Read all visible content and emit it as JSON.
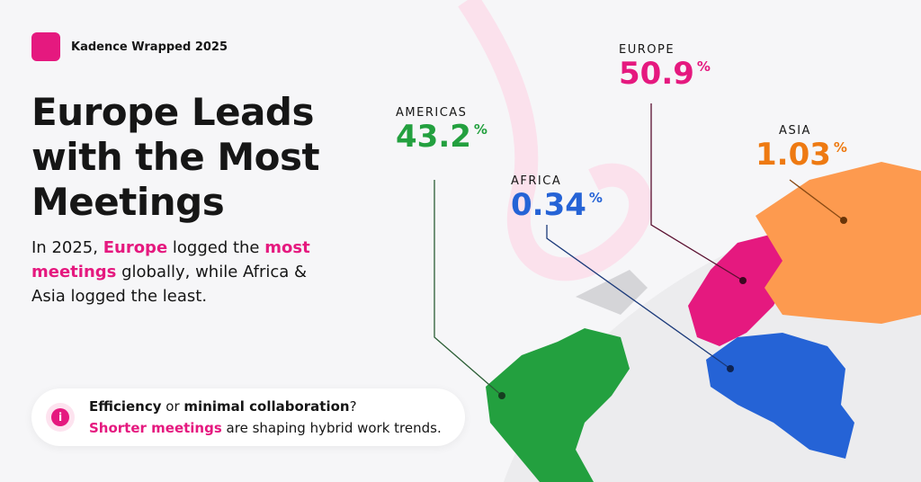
{
  "brand": "Kadence Wrapped 2025",
  "title": "Europe Leads with the Most Meetings",
  "description": [
    "In 2025, ",
    "Europe",
    " logged the ",
    "most meetings",
    " globally, while Africa & Asia logged the least."
  ],
  "regions": [
    {
      "name": "AMERICAS",
      "value": 43.2,
      "unit": "%"
    },
    {
      "name": "EUROPE",
      "value": 50.9,
      "unit": "%"
    },
    {
      "name": "AFRICA",
      "value": 0.34,
      "unit": "%"
    },
    {
      "name": "ASIA",
      "value": 1.03,
      "unit": "%"
    }
  ],
  "note": {
    "line1": [
      "Efficiency",
      " or ",
      "minimal collaboration",
      "?"
    ],
    "line2": [
      "Shorter meetings",
      " are shaping hybrid work trends."
    ]
  }
}
